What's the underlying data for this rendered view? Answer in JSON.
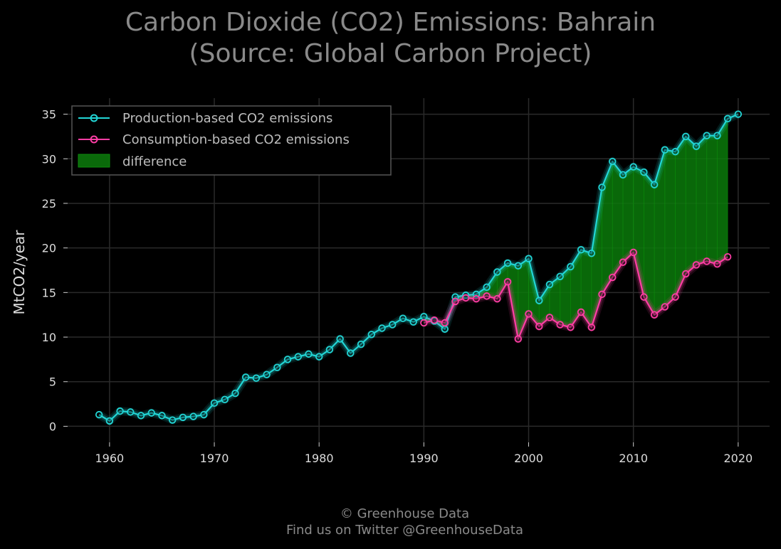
{
  "title_line1": "Carbon Dioxide (CO2) Emissions: Bahrain",
  "title_line2": "(Source: Global Carbon Project)",
  "footer_line1": "© Greenhouse Data",
  "footer_line2": "Find us on Twitter @GreenhouseData",
  "colors": {
    "background": "#000000",
    "production": "#22d6d6",
    "consumption": "#ff3ea5",
    "difference": "#0a7a0a",
    "grid": "#2a2a2a"
  },
  "chart_data": {
    "type": "line",
    "title": "Carbon Dioxide (CO2) Emissions: Bahrain\n(Source: Global Carbon Project)",
    "xlabel": "",
    "ylabel": "MtCO2/year",
    "xlim": [
      1956,
      2023
    ],
    "ylim": [
      -1.8,
      36.8
    ],
    "xticks": [
      1960,
      1970,
      1980,
      1990,
      2000,
      2010,
      2020
    ],
    "yticks": [
      0,
      5,
      10,
      15,
      20,
      25,
      30,
      35
    ],
    "grid": true,
    "legend_position": "top-left",
    "legend": [
      "Production-based CO2 emissions",
      "Consumption-based CO2 emissions",
      "difference"
    ],
    "series": [
      {
        "name": "Production-based CO2 emissions",
        "x": [
          1959,
          1960,
          1961,
          1962,
          1963,
          1964,
          1965,
          1966,
          1967,
          1968,
          1969,
          1970,
          1971,
          1972,
          1973,
          1974,
          1975,
          1976,
          1977,
          1978,
          1979,
          1980,
          1981,
          1982,
          1983,
          1984,
          1985,
          1986,
          1987,
          1988,
          1989,
          1990,
          1991,
          1992,
          1993,
          1994,
          1995,
          1996,
          1997,
          1998,
          1999,
          2000,
          2001,
          2002,
          2003,
          2004,
          2005,
          2006,
          2007,
          2008,
          2009,
          2010,
          2011,
          2012,
          2013,
          2014,
          2015,
          2016,
          2017,
          2018,
          2019,
          2020
        ],
        "values": [
          1.3,
          0.6,
          1.7,
          1.6,
          1.2,
          1.5,
          1.2,
          0.7,
          1.0,
          1.1,
          1.3,
          2.6,
          3.0,
          3.7,
          5.5,
          5.4,
          5.8,
          6.6,
          7.5,
          7.8,
          8.1,
          7.8,
          8.6,
          9.8,
          8.2,
          9.2,
          10.3,
          11.0,
          11.4,
          12.1,
          11.7,
          12.3,
          11.8,
          10.9,
          14.5,
          14.7,
          14.8,
          15.6,
          17.3,
          18.3,
          18.0,
          18.8,
          14.1,
          15.9,
          16.8,
          17.9,
          19.8,
          19.4,
          26.8,
          29.7,
          28.2,
          29.1,
          28.5,
          27.1,
          31.0,
          30.8,
          32.5,
          31.4,
          32.6,
          32.6,
          34.5,
          35.0
        ]
      },
      {
        "name": "Consumption-based CO2 emissions",
        "x": [
          1990,
          1991,
          1992,
          1993,
          1994,
          1995,
          1996,
          1997,
          1998,
          1999,
          2000,
          2001,
          2002,
          2003,
          2004,
          2005,
          2006,
          2007,
          2008,
          2009,
          2010,
          2011,
          2012,
          2013,
          2014,
          2015,
          2016,
          2017,
          2018,
          2019
        ],
        "values": [
          11.6,
          11.9,
          11.6,
          14.0,
          14.4,
          14.3,
          14.6,
          14.3,
          16.2,
          9.8,
          12.6,
          11.2,
          12.2,
          11.4,
          11.1,
          12.8,
          11.1,
          14.8,
          16.7,
          18.4,
          19.5,
          14.5,
          12.5,
          13.4,
          14.5,
          17.1,
          18.1,
          18.5,
          18.2,
          19.0
        ]
      }
    ]
  }
}
